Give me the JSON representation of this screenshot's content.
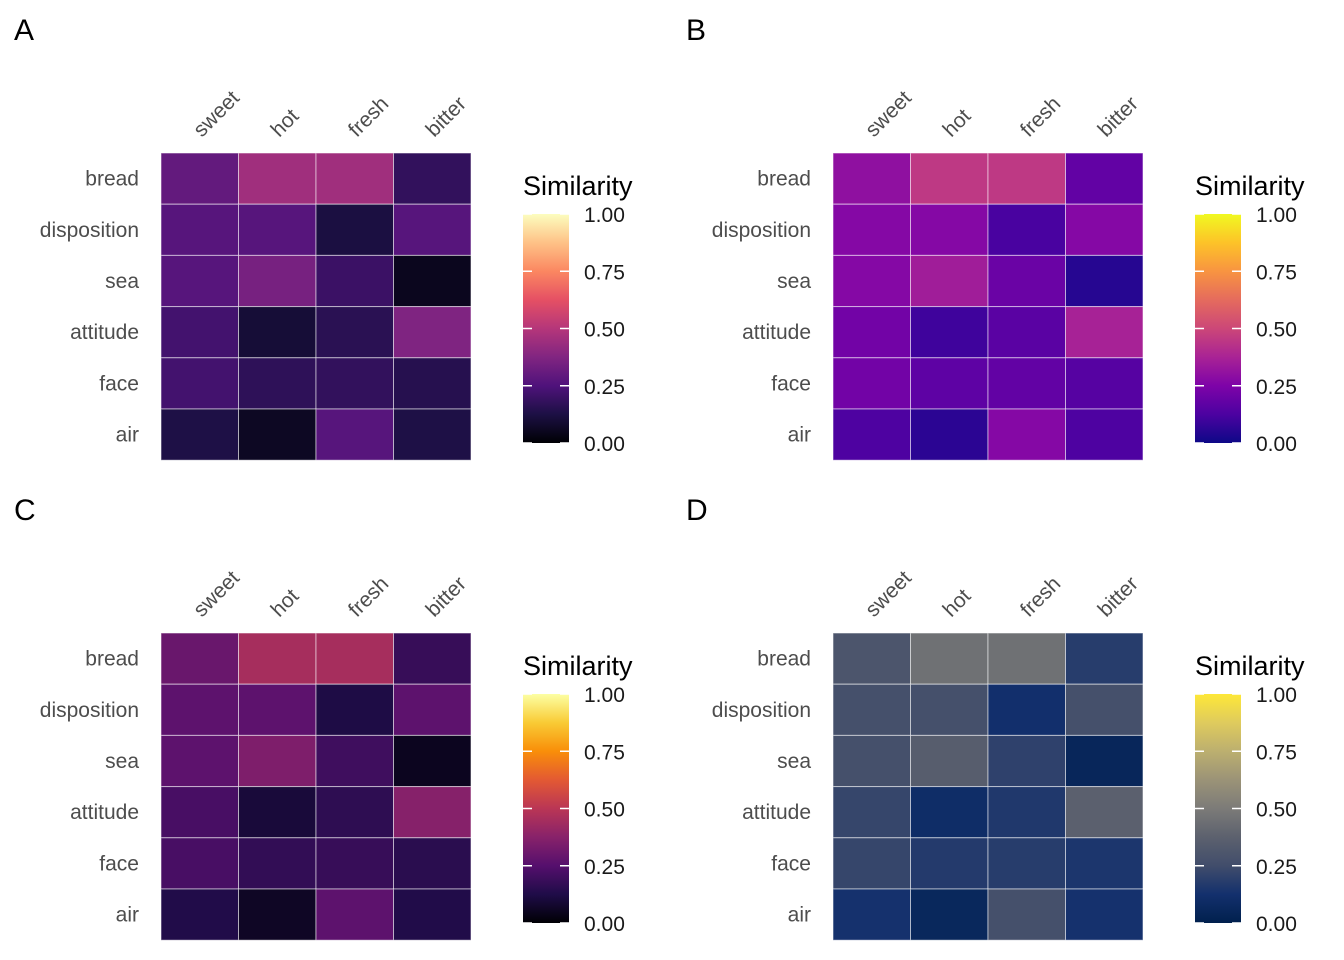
{
  "figure": {
    "panels": [
      "A",
      "B",
      "C",
      "D"
    ]
  },
  "chart_data": [
    {
      "panel": "A",
      "type": "heatmap",
      "colormap": "magma",
      "columns": [
        "sweet",
        "hot",
        "fresh",
        "bitter"
      ],
      "rows": [
        "bread",
        "disposition",
        "sea",
        "attitude",
        "face",
        "air"
      ],
      "values": [
        [
          0.3,
          0.45,
          0.45,
          0.18
        ],
        [
          0.27,
          0.27,
          0.12,
          0.27
        ],
        [
          0.27,
          0.35,
          0.2,
          0.05
        ],
        [
          0.22,
          0.1,
          0.16,
          0.37
        ],
        [
          0.22,
          0.17,
          0.18,
          0.15
        ],
        [
          0.13,
          0.06,
          0.27,
          0.13
        ]
      ],
      "legend": {
        "title": "Similarity",
        "ticks": [
          "1.00",
          "0.75",
          "0.50",
          "0.25",
          "0.00"
        ],
        "range": [
          0,
          1
        ]
      }
    },
    {
      "panel": "B",
      "type": "heatmap",
      "colormap": "plasma",
      "columns": [
        "sweet",
        "hot",
        "fresh",
        "bitter"
      ],
      "rows": [
        "bread",
        "disposition",
        "sea",
        "attitude",
        "face",
        "air"
      ],
      "values": [
        [
          0.3,
          0.45,
          0.45,
          0.18
        ],
        [
          0.27,
          0.27,
          0.12,
          0.27
        ],
        [
          0.27,
          0.35,
          0.2,
          0.05
        ],
        [
          0.22,
          0.1,
          0.16,
          0.37
        ],
        [
          0.22,
          0.17,
          0.18,
          0.15
        ],
        [
          0.13,
          0.06,
          0.27,
          0.13
        ]
      ],
      "legend": {
        "title": "Similarity",
        "ticks": [
          "1.00",
          "0.75",
          "0.50",
          "0.25",
          "0.00"
        ],
        "range": [
          0,
          1
        ]
      }
    },
    {
      "panel": "C",
      "type": "heatmap",
      "colormap": "inferno",
      "columns": [
        "sweet",
        "hot",
        "fresh",
        "bitter"
      ],
      "rows": [
        "bread",
        "disposition",
        "sea",
        "attitude",
        "face",
        "air"
      ],
      "values": [
        [
          0.3,
          0.45,
          0.45,
          0.18
        ],
        [
          0.27,
          0.27,
          0.12,
          0.27
        ],
        [
          0.27,
          0.35,
          0.2,
          0.05
        ],
        [
          0.22,
          0.1,
          0.16,
          0.37
        ],
        [
          0.22,
          0.17,
          0.18,
          0.15
        ],
        [
          0.13,
          0.06,
          0.27,
          0.13
        ]
      ],
      "legend": {
        "title": "Similarity",
        "ticks": [
          "1.00",
          "0.75",
          "0.50",
          "0.25",
          "0.00"
        ],
        "range": [
          0,
          1
        ]
      }
    },
    {
      "panel": "D",
      "type": "heatmap",
      "colormap": "cividis",
      "columns": [
        "sweet",
        "hot",
        "fresh",
        "bitter"
      ],
      "rows": [
        "bread",
        "disposition",
        "sea",
        "attitude",
        "face",
        "air"
      ],
      "values": [
        [
          0.3,
          0.45,
          0.45,
          0.18
        ],
        [
          0.27,
          0.27,
          0.12,
          0.27
        ],
        [
          0.27,
          0.35,
          0.2,
          0.05
        ],
        [
          0.22,
          0.1,
          0.16,
          0.37
        ],
        [
          0.22,
          0.17,
          0.18,
          0.15
        ],
        [
          0.13,
          0.06,
          0.27,
          0.13
        ]
      ],
      "legend": {
        "title": "Similarity",
        "ticks": [
          "1.00",
          "0.75",
          "0.50",
          "0.25",
          "0.00"
        ],
        "range": [
          0,
          1
        ]
      }
    }
  ],
  "colormaps": {
    "magma": [
      "#000004",
      "#1c1044",
      "#4f127b",
      "#812581",
      "#b5367a",
      "#e55064",
      "#fb8761",
      "#fec287",
      "#fcfdbf"
    ],
    "plasma": [
      "#0d0887",
      "#4c02a1",
      "#7e03a8",
      "#a92395",
      "#cc4778",
      "#e56b5d",
      "#f89441",
      "#fdc328",
      "#f0f921"
    ],
    "inferno": [
      "#000004",
      "#1f0c48",
      "#550f6d",
      "#88226a",
      "#ba3655",
      "#e35933",
      "#f98e09",
      "#f9cb35",
      "#fcffa4"
    ],
    "cividis": [
      "#00204d",
      "#13306d",
      "#414d6b",
      "#5c616e",
      "#7c7b78",
      "#9b9377",
      "#bcaf6f",
      "#dfcb5d",
      "#fee838"
    ]
  }
}
